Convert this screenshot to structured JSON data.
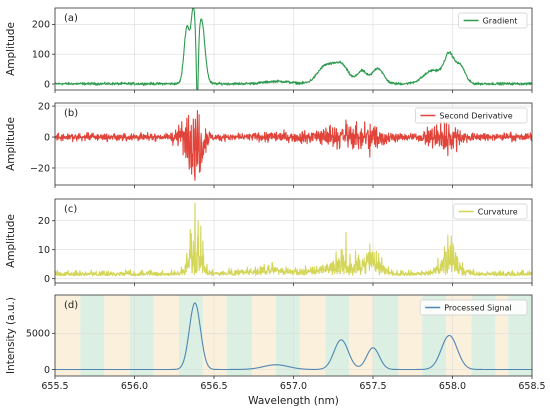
{
  "chart_data": [
    {
      "type": "line",
      "panel_label": "(a)",
      "ylabel": "Amplitude",
      "xlim": [
        655.5,
        658.5
      ],
      "ylim": [
        -20,
        255
      ],
      "yticks": [
        0,
        100,
        200
      ],
      "grid": true,
      "legend_position": "top-right",
      "noise": 2,
      "fill": false,
      "series": [
        {
          "name": "Gradient",
          "color": "#2e9a4e",
          "baseline": 1,
          "peaks": [
            {
              "x": 656.33,
              "y": 190,
              "w": 0.018
            },
            {
              "x": 656.37,
              "y": 225,
              "w": 0.014
            },
            {
              "x": 656.42,
              "y": 215,
              "w": 0.022
            },
            {
              "x": 656.9,
              "y": 8,
              "w": 0.08
            },
            {
              "x": 657.2,
              "y": 58,
              "w": 0.05
            },
            {
              "x": 657.3,
              "y": 62,
              "w": 0.045
            },
            {
              "x": 657.43,
              "y": 42,
              "w": 0.03
            },
            {
              "x": 657.53,
              "y": 52,
              "w": 0.035
            },
            {
              "x": 657.88,
              "y": 45,
              "w": 0.06
            },
            {
              "x": 657.98,
              "y": 90,
              "w": 0.03
            },
            {
              "x": 658.05,
              "y": 58,
              "w": 0.03
            }
          ],
          "dips": [
            {
              "x": 656.395,
              "y": 210,
              "w": 0.006
            }
          ]
        }
      ]
    },
    {
      "type": "line",
      "panel_label": "(b)",
      "ylabel": "Amplitude",
      "xlim": [
        655.5,
        658.5
      ],
      "ylim": [
        -31,
        22
      ],
      "yticks": [
        -20,
        0,
        20
      ],
      "grid": true,
      "legend_position": "top-right",
      "noise": 1.2,
      "fill": false,
      "series": [
        {
          "name": "Second Derivative",
          "color": "#e0443a",
          "baseline": 0,
          "oscillation": [
            {
              "x": 656.35,
              "amp": 12,
              "w": 0.06
            },
            {
              "x": 656.4,
              "amp": 16,
              "w": 0.03
            },
            {
              "x": 656.9,
              "amp": 2,
              "w": 0.1
            },
            {
              "x": 657.25,
              "amp": 6,
              "w": 0.12
            },
            {
              "x": 657.48,
              "amp": 7,
              "w": 0.08
            },
            {
              "x": 657.95,
              "amp": 9,
              "w": 0.08
            }
          ],
          "spikes": [
            {
              "x": 656.38,
              "y": -28
            },
            {
              "x": 656.36,
              "y": -24
            },
            {
              "x": 656.34,
              "y": 14
            },
            {
              "x": 656.41,
              "y": -22
            },
            {
              "x": 657.33,
              "y": 11
            },
            {
              "x": 657.48,
              "y": -13
            },
            {
              "x": 657.97,
              "y": -12
            },
            {
              "x": 657.95,
              "y": 10
            }
          ]
        }
      ]
    },
    {
      "type": "line",
      "panel_label": "(c)",
      "ylabel": "Amplitude",
      "xlim": [
        655.5,
        658.5
      ],
      "ylim": [
        -1.5,
        27.5
      ],
      "yticks": [
        0,
        10,
        20
      ],
      "grid": true,
      "legend_position": "top-right",
      "noise": 0.8,
      "fill": false,
      "series": [
        {
          "name": "Curvature",
          "color": "#d4d65a",
          "baseline": 1,
          "envelope": [
            {
              "x": 656.38,
              "amp": 12,
              "w": 0.04
            },
            {
              "x": 656.85,
              "amp": 2,
              "w": 0.15
            },
            {
              "x": 657.3,
              "amp": 5,
              "w": 0.1
            },
            {
              "x": 657.5,
              "amp": 5,
              "w": 0.06
            },
            {
              "x": 657.98,
              "amp": 7,
              "w": 0.06
            }
          ],
          "spikes": [
            {
              "x": 656.38,
              "y": 26
            },
            {
              "x": 656.4,
              "y": 20
            },
            {
              "x": 656.35,
              "y": 17
            },
            {
              "x": 656.43,
              "y": 13
            },
            {
              "x": 657.33,
              "y": 16
            },
            {
              "x": 657.3,
              "y": 10
            },
            {
              "x": 657.48,
              "y": 12
            },
            {
              "x": 657.97,
              "y": 15
            },
            {
              "x": 657.95,
              "y": 11
            },
            {
              "x": 658.02,
              "y": 9
            }
          ]
        }
      ]
    },
    {
      "type": "line",
      "panel_label": "(d)",
      "ylabel": "Intensity (a.u.)",
      "xlabel": "Wavelength (nm)",
      "xlim": [
        655.5,
        658.5
      ],
      "ylim": [
        -900,
        10300
      ],
      "yticks": [
        0,
        5000
      ],
      "xticks": [
        655.5,
        656.0,
        656.5,
        657.0,
        657.5,
        658.0,
        658.5
      ],
      "xtick_labels": [
        "655.5",
        "656.0",
        "656.5",
        "657.0",
        "657.5",
        "658.0",
        "658.5"
      ],
      "grid": true,
      "legend_position": "top-right",
      "noise": 0,
      "fill": false,
      "background_bands": {
        "colors": [
          "#fbf0dc",
          "#dcefe3"
        ],
        "edges": [
          655.5,
          655.66,
          655.81,
          655.97,
          656.12,
          656.28,
          656.43,
          656.58,
          656.74,
          656.89,
          657.04,
          657.2,
          657.35,
          657.5,
          657.66,
          657.81,
          657.96,
          658.12,
          658.27,
          658.35,
          658.5
        ]
      },
      "series": [
        {
          "name": "Processed Signal",
          "color": "#4f86b3",
          "baseline": 0,
          "peaks": [
            {
              "x": 656.38,
              "y": 9200,
              "w": 0.035
            },
            {
              "x": 656.89,
              "y": 650,
              "w": 0.08
            },
            {
              "x": 657.3,
              "y": 4100,
              "w": 0.045
            },
            {
              "x": 657.5,
              "y": 3000,
              "w": 0.04
            },
            {
              "x": 657.98,
              "y": 4700,
              "w": 0.05
            }
          ]
        }
      ]
    }
  ]
}
